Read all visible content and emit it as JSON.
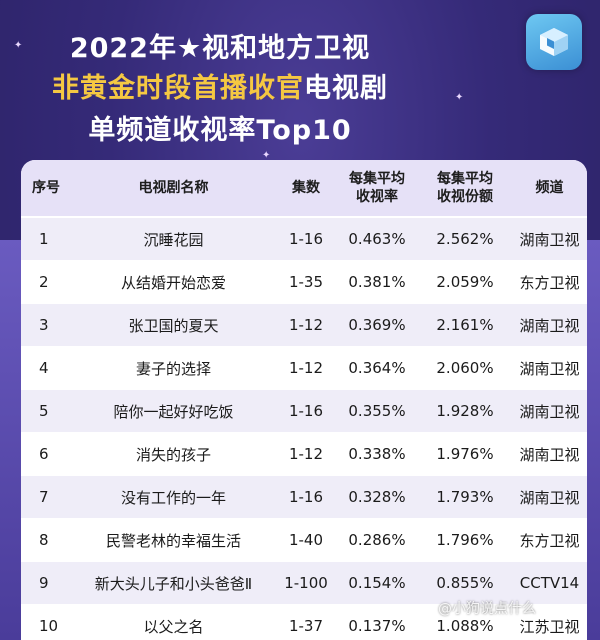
{
  "title": {
    "line1": "2022年★视和地方卫视",
    "line2_highlight": "非黄金时段首播收官",
    "line2_rest": "电视剧",
    "line3": "单频道收视率Top10"
  },
  "table": {
    "headers": [
      "序号",
      "电视剧名称",
      "集数",
      "每集平均\n收视率",
      "每集平均\n收视份额",
      "频道"
    ],
    "rows": [
      [
        "1",
        "沉睡花园",
        "1-16",
        "0.463%",
        "2.562%",
        "湖南卫视"
      ],
      [
        "2",
        "从结婚开始恋爱",
        "1-35",
        "0.381%",
        "2.059%",
        "东方卫视"
      ],
      [
        "3",
        "张卫国的夏天",
        "1-12",
        "0.369%",
        "2.161%",
        "湖南卫视"
      ],
      [
        "4",
        "妻子的选择",
        "1-12",
        "0.364%",
        "2.060%",
        "湖南卫视"
      ],
      [
        "5",
        "陪你一起好好吃饭",
        "1-16",
        "0.355%",
        "1.928%",
        "湖南卫视"
      ],
      [
        "6",
        "消失的孩子",
        "1-12",
        "0.338%",
        "1.976%",
        "湖南卫视"
      ],
      [
        "7",
        "没有工作的一年",
        "1-16",
        "0.328%",
        "1.793%",
        "湖南卫视"
      ],
      [
        "8",
        "民警老林的幸福生活",
        "1-40",
        "0.286%",
        "1.796%",
        "东方卫视"
      ],
      [
        "9",
        "新大头儿子和小头爸爸Ⅱ",
        "1-100",
        "0.154%",
        "0.855%",
        "CCTV14"
      ],
      [
        "10",
        "以父之名",
        "1-37",
        "0.137%",
        "1.088%",
        "江苏卫视"
      ]
    ]
  },
  "watermark": "@小狗说点什么",
  "colors": {
    "background": "#352a78",
    "title_text": "#ffffff",
    "title_highlight": "#f5c842",
    "header_bg": "#e6e1f7",
    "row_alt_bg": "#efedf8"
  },
  "icons": {
    "logo": "blue-cube-logo-icon"
  }
}
